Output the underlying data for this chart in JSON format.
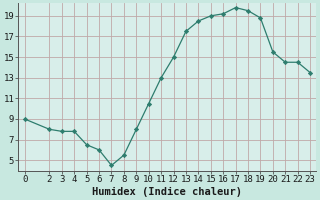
{
  "x": [
    0,
    2,
    3,
    4,
    5,
    6,
    7,
    8,
    9,
    10,
    11,
    12,
    13,
    14,
    15,
    16,
    17,
    18,
    19,
    20,
    21,
    22,
    23
  ],
  "y": [
    9.0,
    8.0,
    7.8,
    7.8,
    6.5,
    6.0,
    4.5,
    5.5,
    8.0,
    10.5,
    13.0,
    15.0,
    17.5,
    18.5,
    19.0,
    19.2,
    19.8,
    19.5,
    18.8,
    15.5,
    14.5,
    14.5,
    13.5
  ],
  "line_color": "#2e7d6e",
  "marker_color": "#2e7d6e",
  "bg_color": "#c8e8e0",
  "plot_bg_color": "#d8eeea",
  "grid_color": "#c0a8a8",
  "xlabel": "Humidex (Indice chaleur)",
  "xlabel_fontsize": 7.5,
  "tick_fontsize": 6.5,
  "xlim": [
    -0.5,
    23.5
  ],
  "ylim": [
    4.0,
    20.2
  ],
  "yticks": [
    5,
    7,
    9,
    11,
    13,
    15,
    17,
    19
  ],
  "xticks": [
    0,
    2,
    3,
    4,
    5,
    6,
    7,
    8,
    9,
    10,
    11,
    12,
    13,
    14,
    15,
    16,
    17,
    18,
    19,
    20,
    21,
    22,
    23
  ]
}
